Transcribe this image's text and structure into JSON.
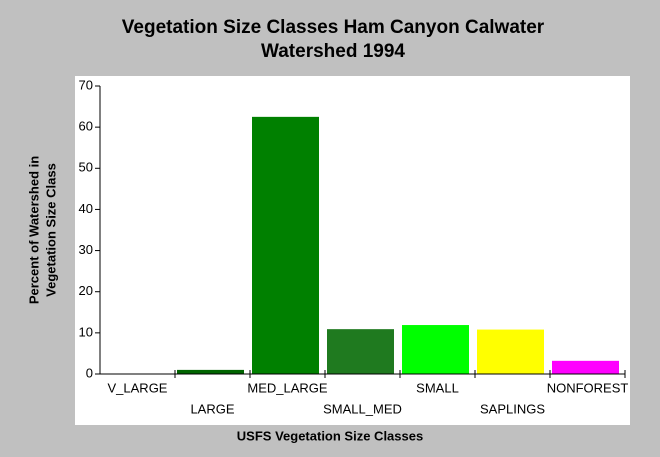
{
  "chart_data": {
    "type": "bar",
    "title": [
      "Vegetation Size Classes Ham Canyon Calwater",
      "Watershed 1994"
    ],
    "x_label": "USFS Vegetation Size Classes",
    "y_label": [
      "Percent of Watershed in",
      "Vegetation Size Class"
    ],
    "categories": [
      "V_LARGE",
      "LARGE",
      "MED_LARGE",
      "SMALL_MED",
      "SMALL",
      "SAPLINGS",
      "NONFOREST"
    ],
    "values": [
      0,
      1,
      62.5,
      10.9,
      11.9,
      10.8,
      3.2
    ],
    "colors": [
      "#006400",
      "#006400",
      "#008000",
      "#1f7a1f",
      "#00ff00",
      "#ffff00",
      "#ff00ff"
    ],
    "ylim": [
      0,
      70
    ],
    "yticks": [
      0,
      10,
      20,
      30,
      40,
      50,
      60,
      70
    ]
  }
}
